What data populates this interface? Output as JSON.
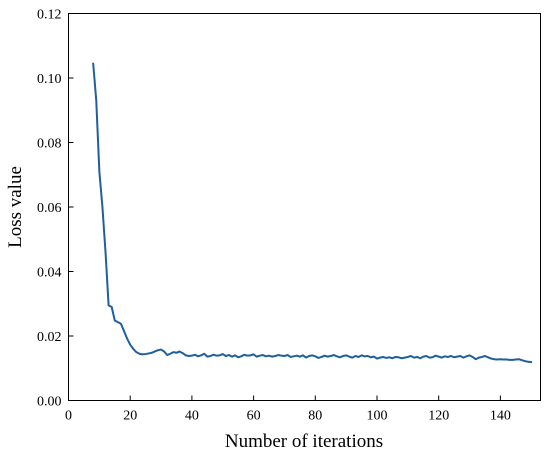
{
  "chart_data": {
    "type": "line",
    "title": "",
    "xlabel": "Number of iterations",
    "ylabel": "Loss value",
    "xlim": [
      0,
      153
    ],
    "ylim": [
      0,
      0.12
    ],
    "xticks": [
      0,
      20,
      40,
      60,
      80,
      100,
      120,
      140
    ],
    "xtick_labels": [
      "0",
      "20",
      "40",
      "60",
      "80",
      "100",
      "120",
      "140"
    ],
    "yticks": [
      0,
      0.02,
      0.04,
      0.06,
      0.08,
      0.1,
      0.12
    ],
    "ytick_labels": [
      "0.00",
      "0.02",
      "0.04",
      "0.06",
      "0.08",
      "0.10",
      "0.12"
    ],
    "grid": false,
    "legend": "none",
    "colors": {
      "line": "#1f5f9e"
    },
    "series": [
      {
        "x": [
          8,
          9,
          10,
          11,
          12,
          13,
          14,
          15,
          16,
          17,
          18,
          19,
          20,
          21,
          22,
          23,
          24,
          25,
          26,
          27,
          28,
          29,
          30,
          31,
          32,
          33,
          34,
          35,
          36,
          37,
          38,
          39,
          40,
          41,
          42,
          43,
          44,
          45,
          46,
          47,
          48,
          49,
          50,
          51,
          52,
          53,
          54,
          55,
          56,
          57,
          58,
          59,
          60,
          61,
          62,
          63,
          64,
          65,
          66,
          67,
          68,
          69,
          70,
          71,
          72,
          73,
          74,
          75,
          76,
          77,
          78,
          79,
          80,
          81,
          82,
          83,
          84,
          85,
          86,
          87,
          88,
          89,
          90,
          91,
          92,
          93,
          94,
          95,
          96,
          97,
          98,
          99,
          100,
          101,
          102,
          103,
          104,
          105,
          106,
          107,
          108,
          109,
          110,
          111,
          112,
          113,
          114,
          115,
          116,
          117,
          118,
          119,
          120,
          121,
          122,
          123,
          124,
          125,
          126,
          127,
          128,
          129,
          130,
          131,
          132,
          133,
          134,
          135,
          136,
          137,
          138,
          139,
          140,
          141,
          142,
          143,
          144,
          145,
          146,
          147,
          148,
          149,
          150
        ],
        "values": [
          0.1045,
          0.093,
          0.071,
          0.06,
          0.046,
          0.0295,
          0.029,
          0.0248,
          0.0243,
          0.0238,
          0.0215,
          0.0192,
          0.0173,
          0.016,
          0.015,
          0.0145,
          0.0143,
          0.0144,
          0.0146,
          0.0148,
          0.0152,
          0.0156,
          0.0158,
          0.0152,
          0.0141,
          0.0145,
          0.015,
          0.0148,
          0.0152,
          0.0147,
          0.014,
          0.0138,
          0.0139,
          0.0142,
          0.0137,
          0.014,
          0.0145,
          0.0136,
          0.0138,
          0.0142,
          0.0139,
          0.014,
          0.0144,
          0.0138,
          0.0141,
          0.0136,
          0.014,
          0.0134,
          0.0137,
          0.0142,
          0.0139,
          0.014,
          0.0143,
          0.0136,
          0.0139,
          0.0141,
          0.0137,
          0.0139,
          0.0136,
          0.0138,
          0.0141,
          0.0139,
          0.0138,
          0.0141,
          0.0135,
          0.0137,
          0.0139,
          0.0136,
          0.014,
          0.0133,
          0.0138,
          0.014,
          0.0137,
          0.0132,
          0.0135,
          0.0139,
          0.0136,
          0.0138,
          0.0141,
          0.0137,
          0.0134,
          0.0138,
          0.014,
          0.0136,
          0.0133,
          0.0138,
          0.0135,
          0.014,
          0.0137,
          0.0138,
          0.0134,
          0.0136,
          0.013,
          0.0133,
          0.0135,
          0.0132,
          0.0134,
          0.0131,
          0.0135,
          0.0134,
          0.0131,
          0.0133,
          0.0135,
          0.0138,
          0.0133,
          0.0135,
          0.0131,
          0.0136,
          0.0138,
          0.0133,
          0.0134,
          0.0139,
          0.0136,
          0.0133,
          0.0137,
          0.0135,
          0.0138,
          0.0134,
          0.0136,
          0.0138,
          0.0133,
          0.0137,
          0.014,
          0.0135,
          0.0128,
          0.0133,
          0.0135,
          0.0138,
          0.0134,
          0.013,
          0.0128,
          0.0127,
          0.0128,
          0.0127,
          0.0127,
          0.0126,
          0.0126,
          0.0127,
          0.0128,
          0.0125,
          0.0122,
          0.012,
          0.0119
        ]
      }
    ]
  }
}
